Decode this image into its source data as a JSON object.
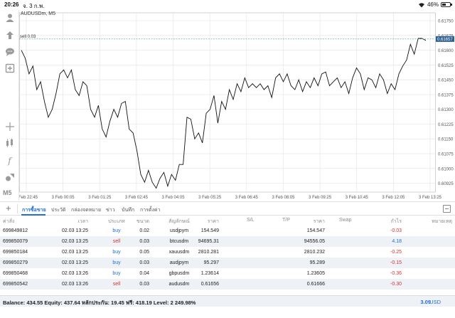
{
  "status_bar": {
    "time": "20:26",
    "date": "จ. 3 ก.พ.",
    "battery": "46%",
    "battery_level": 0.46
  },
  "toolbar": {
    "icons": [
      "account-icon",
      "signal-icon",
      "chat-icon",
      "add-icon",
      "crosshair-icon",
      "indicator-icon",
      "function-icon",
      "objects-icon",
      "timeframe-label"
    ],
    "timeframe": "M5"
  },
  "chart": {
    "symbol": "AUDUSDm, M5",
    "order_line_label": "sell 0.03",
    "current_price": "0.61657",
    "colors": {
      "line": "#111111",
      "grid": "#e6e6e6",
      "order_line": "#5a9a8a",
      "price_tag": "#2d5f8f"
    }
  },
  "chart_data": {
    "type": "line",
    "title": "AUDUSDm, M5",
    "xlabel": "",
    "ylabel": "",
    "x_ticks": [
      "2 Feb 22:45",
      "3 Feb 00:05",
      "3 Feb 01:25",
      "3 Feb 02:45",
      "3 Feb 04:05",
      "3 Feb 05:25",
      "3 Feb 06:45",
      "3 Feb 08:05",
      "3 Feb 09:25",
      "3 Feb 10:45",
      "3 Feb 12:05",
      "3 Feb 13:25"
    ],
    "y_ticks": [
      "0.61750",
      "0.61675",
      "0.61600",
      "0.61525",
      "0.61450",
      "0.61375",
      "0.61300",
      "0.61225",
      "0.61150",
      "0.61075",
      "0.61000",
      "0.60925"
    ],
    "ylim": [
      0.6088,
      0.6179
    ],
    "grid": true,
    "series": [
      {
        "values": [
          0.616,
          0.6156,
          0.6148,
          0.6152,
          0.614,
          0.6144,
          0.6134,
          0.6126,
          0.613,
          0.6138,
          0.6148,
          0.615,
          0.6146,
          0.615,
          0.614,
          0.6137,
          0.6144,
          0.6142,
          0.613,
          0.6126,
          0.6132,
          0.612,
          0.6116,
          0.6124,
          0.613,
          0.6126,
          0.6133,
          0.6134,
          0.612,
          0.6118,
          0.6109,
          0.6097,
          0.6093,
          0.6099,
          0.6093,
          0.609,
          0.6095,
          0.6098,
          0.6091,
          0.6097,
          0.6094,
          0.6102,
          0.6102,
          0.6126,
          0.6125,
          0.6115,
          0.6118,
          0.6113,
          0.6128,
          0.613,
          0.6137,
          0.6123,
          0.6134,
          0.613,
          0.614,
          0.6135,
          0.6143,
          0.6139,
          0.6146,
          0.6141,
          0.6143,
          0.6141,
          0.6143,
          0.614,
          0.6142,
          0.6136,
          0.6146,
          0.6148,
          0.6144,
          0.6148,
          0.6142,
          0.614,
          0.6145,
          0.6139,
          0.6144,
          0.6141,
          0.6146,
          0.6142,
          0.6148,
          0.6149,
          0.6142,
          0.6144,
          0.6146,
          0.6141,
          0.6144,
          0.6138,
          0.6146,
          0.6151,
          0.6148,
          0.614,
          0.6146,
          0.6145,
          0.6141,
          0.6148,
          0.6145,
          0.6138,
          0.6143,
          0.614,
          0.6148,
          0.6152,
          0.6155,
          0.6163,
          0.6158,
          0.6166,
          0.6166,
          0.6165
        ]
      }
    ]
  },
  "tabs": [
    {
      "label": "การซื้อขาย",
      "active": true
    },
    {
      "label": "ประวัติ",
      "active": false
    },
    {
      "label": "กล่องจดหมาย",
      "active": false
    },
    {
      "label": "ข่าว",
      "active": false
    },
    {
      "label": "บันทึก",
      "active": false
    },
    {
      "label": "การตั้งค่า",
      "active": false
    }
  ],
  "table": {
    "headers": {
      "ticket": "ค่าสั่ง",
      "time": "เวลา",
      "type": "ประเภท",
      "volume": "ขนาด",
      "symbol": "สัญลักษณ์",
      "price": "ราคา",
      "sl": "S/L",
      "tp": "T/P",
      "current": "ราคา",
      "swap": "Swap",
      "profit": "กำไร",
      "comment": "หมายเหตุ"
    },
    "rows": [
      {
        "ticket": "699849812",
        "time": "02.03 13:25",
        "type": "buy",
        "volume": "0.02",
        "symbol": "usdjpym",
        "price": "154.549",
        "current": "154.547",
        "profit": "-0.03"
      },
      {
        "ticket": "699850079",
        "time": "02.03 13:25",
        "type": "sell",
        "volume": "0.03",
        "symbol": "btcusdm",
        "price": "94695.31",
        "current": "94556.05",
        "profit": "4.18"
      },
      {
        "ticket": "699850184",
        "time": "02.03 13:25",
        "type": "buy",
        "volume": "0.05",
        "symbol": "xauusdm",
        "price": "2810.281",
        "current": "2810.232",
        "profit": "-0.25"
      },
      {
        "ticket": "699850279",
        "time": "02.03 13:25",
        "type": "buy",
        "volume": "0.03",
        "symbol": "audjpym",
        "price": "95.297",
        "current": "95.289",
        "profit": "-0.15"
      },
      {
        "ticket": "699850468",
        "time": "02.03 13:26",
        "type": "buy",
        "volume": "0.04",
        "symbol": "gbpusdm",
        "price": "1.23614",
        "current": "1.23605",
        "profit": "-0.36"
      },
      {
        "ticket": "699850542",
        "time": "02.03 13:26",
        "type": "sell",
        "volume": "0.03",
        "symbol": "audusdm",
        "price": "0.61656",
        "current": "0.61666",
        "profit": "-0.30"
      }
    ]
  },
  "balance_bar": {
    "text": "Balance: 434.55 Equity: 437.64 หลักประกัน: 19.45 ฟรี: 418.19 Level: 2 249.98%",
    "total": "3.09",
    "currency": "USD"
  }
}
